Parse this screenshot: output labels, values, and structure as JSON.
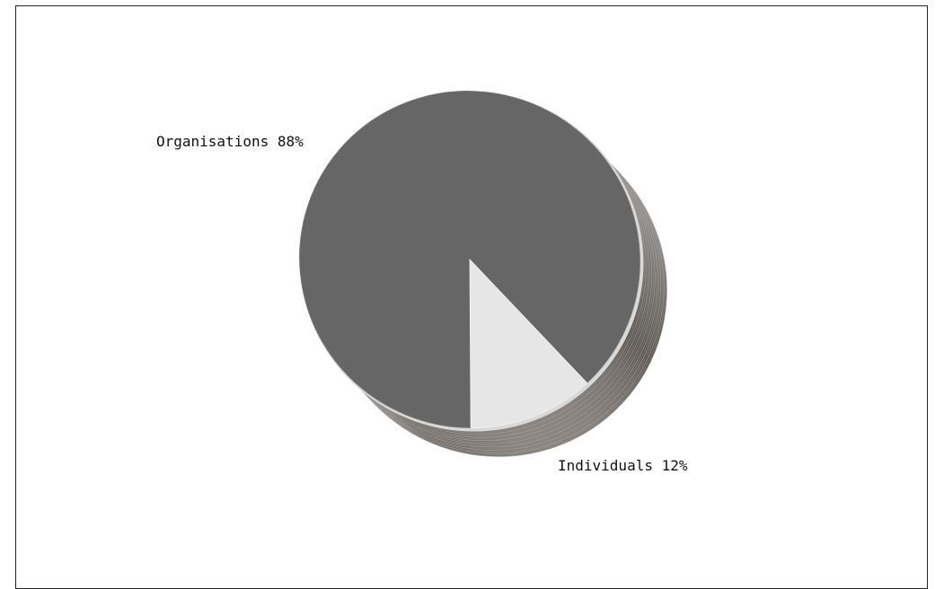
{
  "chart_data": {
    "type": "pie",
    "style": "3d",
    "title": "",
    "slices": [
      {
        "label": "Organisations 88%",
        "name": "Organisations",
        "value": 88,
        "color": "#666666"
      },
      {
        "label": "Individuals 12%",
        "name": "Individuals",
        "value": 12,
        "color": "#e6e6e6"
      }
    ]
  }
}
